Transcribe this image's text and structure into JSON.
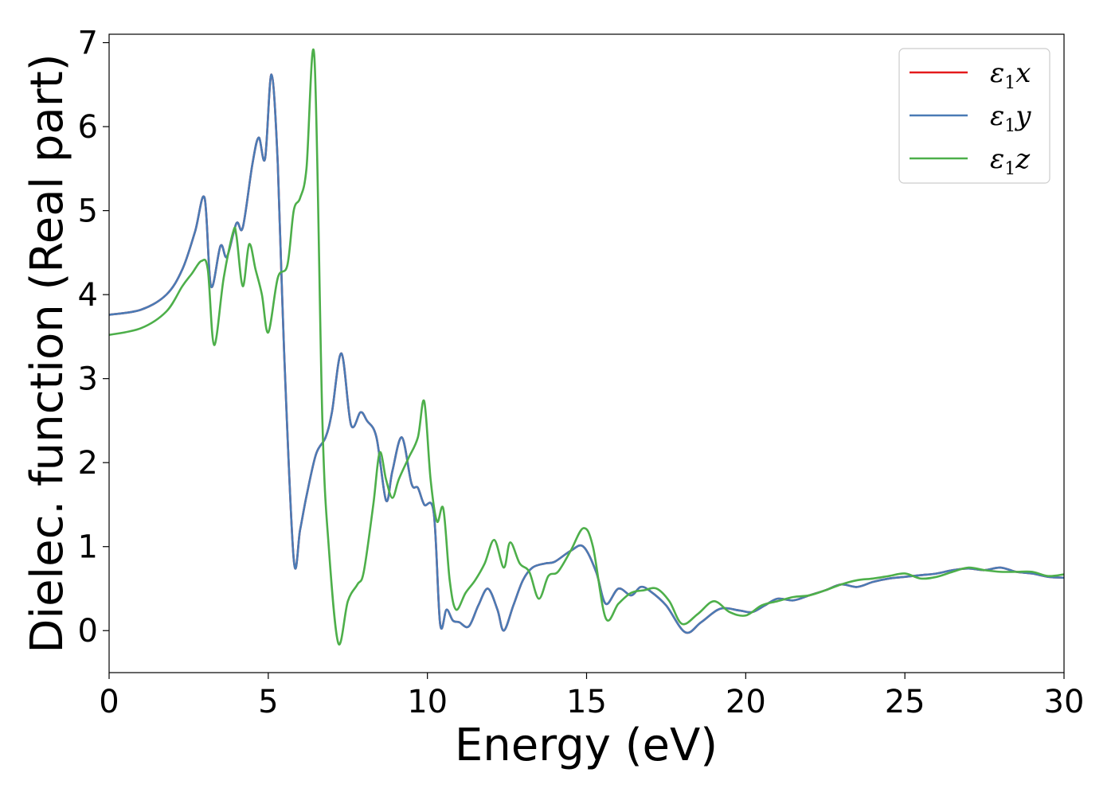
{
  "chart_data": {
    "type": "line",
    "xlabel": "Energy (eV)",
    "ylabel": "Dielec. function (Real part)",
    "xlim": [
      0,
      30
    ],
    "ylim": [
      -0.5,
      7.1
    ],
    "xticks": [
      0,
      5,
      10,
      15,
      20,
      25,
      30
    ],
    "yticks": [
      0,
      1,
      2,
      3,
      4,
      5,
      6,
      7
    ],
    "grid": false,
    "legend_position": "top-right",
    "legend": [
      {
        "symbol": "ε",
        "sub": "1",
        "axis": "x",
        "color": "#e41a1c"
      },
      {
        "symbol": "ε",
        "sub": "1",
        "axis": "y",
        "color": "#4a7bb5"
      },
      {
        "symbol": "ε",
        "sub": "1",
        "axis": "z",
        "color": "#4daf4a"
      }
    ],
    "series": [
      {
        "name": "ε1x",
        "color": "#e41a1c",
        "x": [
          0,
          1,
          1.8,
          2.3,
          2.7,
          3.0,
          3.2,
          3.5,
          3.7,
          4.0,
          4.2,
          4.5,
          4.7,
          4.9,
          5.1,
          5.3,
          5.5,
          5.8,
          6.0,
          6.2,
          6.5,
          6.8,
          7.0,
          7.3,
          7.6,
          7.9,
          8.1,
          8.4,
          8.7,
          8.9,
          9.2,
          9.5,
          9.7,
          9.9,
          10.2,
          10.4,
          10.6,
          10.8,
          11.0,
          11.3,
          11.6,
          11.9,
          12.2,
          12.4,
          12.7,
          13.0,
          13.3,
          13.7,
          14.0,
          14.5,
          14.9,
          15.3,
          15.6,
          16.0,
          16.4,
          16.7,
          17.0,
          17.5,
          18.1,
          18.6,
          19.2,
          19.8,
          20.2,
          20.6,
          21.0,
          21.5,
          22.0,
          22.5,
          23.0,
          23.5,
          24.0,
          24.5,
          25.0,
          25.5,
          26.0,
          26.5,
          27.0,
          27.5,
          28.0,
          28.5,
          29.0,
          29.5,
          30.0
        ],
        "y": [
          3.76,
          3.82,
          4.0,
          4.3,
          4.75,
          5.15,
          4.1,
          4.58,
          4.45,
          4.85,
          4.8,
          5.55,
          5.87,
          5.62,
          6.62,
          5.55,
          3.3,
          0.85,
          1.2,
          1.6,
          2.1,
          2.3,
          2.6,
          3.3,
          2.45,
          2.6,
          2.5,
          2.3,
          1.55,
          1.9,
          2.3,
          1.75,
          1.7,
          1.5,
          1.4,
          0.08,
          0.25,
          0.12,
          0.1,
          0.05,
          0.3,
          0.5,
          0.25,
          0.0,
          0.3,
          0.6,
          0.75,
          0.8,
          0.82,
          0.95,
          1.0,
          0.7,
          0.32,
          0.5,
          0.42,
          0.52,
          0.47,
          0.3,
          -0.02,
          0.1,
          0.26,
          0.24,
          0.22,
          0.3,
          0.38,
          0.36,
          0.42,
          0.48,
          0.55,
          0.52,
          0.58,
          0.62,
          0.64,
          0.66,
          0.68,
          0.72,
          0.74,
          0.72,
          0.75,
          0.7,
          0.68,
          0.64,
          0.63
        ]
      },
      {
        "name": "ε1y",
        "color": "#4a7bb5",
        "x": [
          0,
          1,
          1.8,
          2.3,
          2.7,
          3.0,
          3.2,
          3.5,
          3.7,
          4.0,
          4.2,
          4.5,
          4.7,
          4.9,
          5.1,
          5.3,
          5.5,
          5.8,
          6.0,
          6.2,
          6.5,
          6.8,
          7.0,
          7.3,
          7.6,
          7.9,
          8.1,
          8.4,
          8.7,
          8.9,
          9.2,
          9.5,
          9.7,
          9.9,
          10.2,
          10.4,
          10.6,
          10.8,
          11.0,
          11.3,
          11.6,
          11.9,
          12.2,
          12.4,
          12.7,
          13.0,
          13.3,
          13.7,
          14.0,
          14.5,
          14.9,
          15.3,
          15.6,
          16.0,
          16.4,
          16.7,
          17.0,
          17.5,
          18.1,
          18.6,
          19.2,
          19.8,
          20.2,
          20.6,
          21.0,
          21.5,
          22.0,
          22.5,
          23.0,
          23.5,
          24.0,
          24.5,
          25.0,
          25.5,
          26.0,
          26.5,
          27.0,
          27.5,
          28.0,
          28.5,
          29.0,
          29.5,
          30.0
        ],
        "y": [
          3.76,
          3.82,
          4.0,
          4.3,
          4.75,
          5.15,
          4.1,
          4.58,
          4.45,
          4.85,
          4.8,
          5.55,
          5.87,
          5.62,
          6.62,
          5.55,
          3.3,
          0.85,
          1.2,
          1.6,
          2.1,
          2.3,
          2.6,
          3.3,
          2.45,
          2.6,
          2.5,
          2.3,
          1.55,
          1.9,
          2.3,
          1.75,
          1.7,
          1.5,
          1.4,
          0.08,
          0.25,
          0.12,
          0.1,
          0.05,
          0.3,
          0.5,
          0.25,
          0.0,
          0.3,
          0.6,
          0.75,
          0.8,
          0.82,
          0.95,
          1.0,
          0.7,
          0.32,
          0.5,
          0.42,
          0.52,
          0.47,
          0.3,
          -0.02,
          0.1,
          0.26,
          0.24,
          0.22,
          0.3,
          0.38,
          0.36,
          0.42,
          0.48,
          0.55,
          0.52,
          0.58,
          0.62,
          0.64,
          0.66,
          0.68,
          0.72,
          0.74,
          0.72,
          0.75,
          0.7,
          0.68,
          0.64,
          0.63
        ]
      },
      {
        "name": "ε1z",
        "color": "#4daf4a",
        "x": [
          0,
          1,
          1.8,
          2.3,
          2.6,
          2.9,
          3.1,
          3.3,
          3.6,
          3.9,
          4.0,
          4.2,
          4.4,
          4.6,
          4.8,
          5.0,
          5.3,
          5.6,
          5.8,
          6.0,
          6.2,
          6.45,
          6.7,
          6.9,
          7.2,
          7.5,
          7.8,
          8.0,
          8.3,
          8.5,
          8.7,
          8.9,
          9.1,
          9.4,
          9.7,
          9.9,
          10.1,
          10.3,
          10.5,
          10.7,
          10.9,
          11.2,
          11.5,
          11.8,
          12.1,
          12.4,
          12.6,
          12.9,
          13.2,
          13.5,
          13.8,
          14.1,
          14.5,
          14.9,
          15.2,
          15.6,
          16.0,
          16.4,
          16.8,
          17.2,
          17.6,
          18.0,
          18.5,
          19.0,
          19.5,
          20.0,
          20.5,
          21.0,
          21.5,
          22.0,
          22.5,
          23.0,
          23.5,
          24.0,
          24.5,
          25.0,
          25.5,
          26.0,
          26.5,
          27.0,
          27.5,
          28.0,
          28.5,
          29.0,
          29.5,
          30.0
        ],
        "y": [
          3.52,
          3.6,
          3.8,
          4.1,
          4.25,
          4.4,
          4.3,
          3.4,
          4.2,
          4.75,
          4.7,
          4.1,
          4.6,
          4.3,
          4.0,
          3.55,
          4.2,
          4.35,
          5.0,
          5.15,
          5.5,
          6.82,
          2.5,
          1.0,
          -0.15,
          0.35,
          0.55,
          0.7,
          1.5,
          2.12,
          1.8,
          1.58,
          1.8,
          2.05,
          2.3,
          2.73,
          1.8,
          1.3,
          1.45,
          0.6,
          0.25,
          0.45,
          0.6,
          0.8,
          1.08,
          0.75,
          1.05,
          0.8,
          0.7,
          0.38,
          0.65,
          0.7,
          0.95,
          1.22,
          1.0,
          0.15,
          0.32,
          0.45,
          0.48,
          0.5,
          0.35,
          0.08,
          0.2,
          0.35,
          0.22,
          0.18,
          0.3,
          0.35,
          0.4,
          0.42,
          0.48,
          0.55,
          0.6,
          0.62,
          0.65,
          0.68,
          0.62,
          0.64,
          0.7,
          0.75,
          0.72,
          0.7,
          0.7,
          0.7,
          0.65,
          0.67
        ]
      }
    ]
  }
}
